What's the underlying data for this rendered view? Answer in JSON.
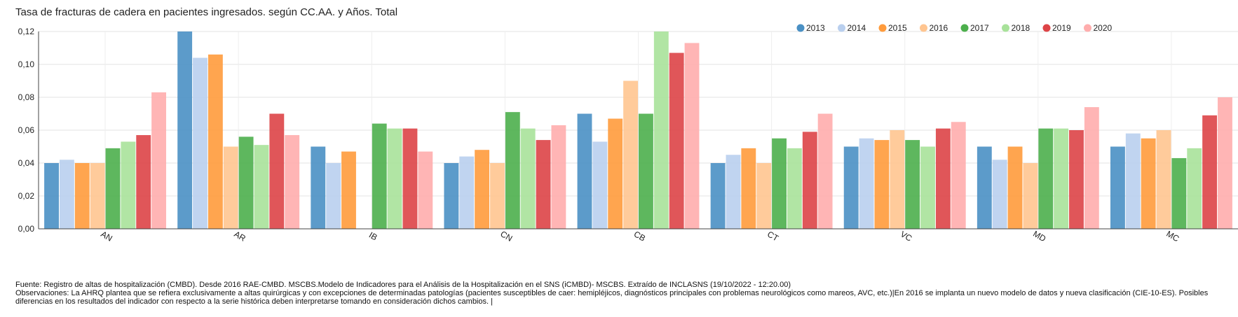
{
  "chart_data": {
    "type": "bar",
    "title": "Tasa de fracturas de cadera en pacientes ingresados. según CC.AA. y Años. Total",
    "xlabel": "",
    "ylabel": "",
    "ylim": [
      0,
      0.12
    ],
    "yticks": [
      "0,00",
      "0,02",
      "0,04",
      "0,06",
      "0,08",
      "0,10",
      "0,12"
    ],
    "grid": true,
    "legend_position": "top-right",
    "categories": [
      "AN",
      "AR",
      "IB",
      "CN",
      "CB",
      "CT",
      "VC",
      "MD",
      "MC"
    ],
    "series": [
      {
        "name": "2013",
        "color": "#4a90c4",
        "values": [
          0.04,
          0.12,
          0.05,
          0.04,
          0.07,
          0.04,
          0.05,
          0.05,
          0.05
        ]
      },
      {
        "name": "2014",
        "color": "#b9cfee",
        "values": [
          0.042,
          0.104,
          0.04,
          0.044,
          0.053,
          0.045,
          0.055,
          0.042,
          0.058
        ]
      },
      {
        "name": "2015",
        "color": "#ff9b3c",
        "values": [
          0.04,
          0.106,
          0.047,
          0.048,
          0.067,
          0.049,
          0.054,
          0.05,
          0.055
        ]
      },
      {
        "name": "2016",
        "color": "#ffc590",
        "values": [
          0.04,
          0.05,
          null,
          0.04,
          0.09,
          0.04,
          0.06,
          0.04,
          0.06
        ]
      },
      {
        "name": "2017",
        "color": "#4caf4c",
        "values": [
          0.049,
          0.056,
          0.064,
          0.071,
          0.07,
          0.055,
          0.054,
          0.061,
          0.043
        ]
      },
      {
        "name": "2018",
        "color": "#a8e29a",
        "values": [
          0.053,
          0.051,
          0.061,
          0.061,
          0.12,
          0.049,
          0.05,
          0.061,
          0.049
        ]
      },
      {
        "name": "2019",
        "color": "#dd4447",
        "values": [
          0.057,
          0.07,
          0.061,
          0.054,
          0.107,
          0.059,
          0.061,
          0.06,
          0.069
        ]
      },
      {
        "name": "2020",
        "color": "#ffadad",
        "values": [
          0.083,
          0.057,
          0.047,
          0.063,
          0.113,
          0.07,
          0.065,
          0.074,
          0.08
        ]
      }
    ]
  },
  "footer": {
    "source": "Fuente: Registro de altas de hospitalización (CMBD). Desde 2016 RAE-CMBD. MSCBS.Modelo de Indicadores para el Análisis de la Hospitalización en el SNS (iCMBD)- MSCBS. Extraído de INCLASNS (19/10/2022 - 12:20.00)",
    "observations": "Observaciones: La AHRQ plantea que se refiera exclusivamente a altas quirúrgicas y con excepciones de determinadas patologías (pacientes susceptibles de caer: hemipléjicos, diagnósticos principales con problemas neurológicos como mareos, AVC, etc.)|En 2016 se implanta un nuevo modelo de datos y nueva clasificación (CIE-10-ES). Posibles diferencias en los resultados del indicador con respecto a la serie histórica deben interpretarse tomando en consideración dichos cambios. |"
  }
}
